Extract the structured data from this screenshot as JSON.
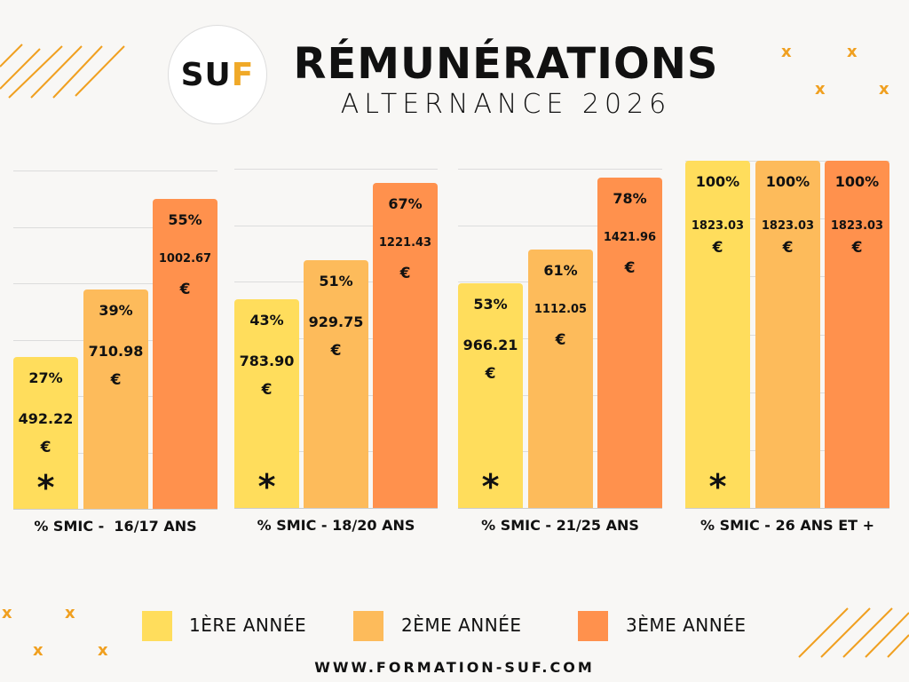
{
  "header": {
    "logo_text": "SUF",
    "title": "RÉMUNÉRATIONS",
    "subtitle": "ALTERNANCE 2026"
  },
  "colors": {
    "year1": "#FFDD5C",
    "year2": "#FDBB5B",
    "year3": "#FF914D",
    "accent": "#F0A020"
  },
  "chart_data": {
    "type": "bar",
    "categories": [
      "% SMIC -  16/17 ANS",
      "% SMIC - 18/20 ANS",
      "% SMIC - 21/25 ANS",
      "% SMIC - 26 ANS ET +"
    ],
    "series": [
      {
        "name": "1ÈRE ANNÉE",
        "values": [
          27,
          43,
          53,
          100
        ],
        "amounts": [
          "492.22",
          "783.90",
          "966.21",
          "1823.03"
        ]
      },
      {
        "name": "2ÈME ANNÉE",
        "values": [
          39,
          51,
          61,
          100
        ],
        "amounts": [
          "710.98",
          "929.75",
          "1112.05",
          "1823.03"
        ]
      },
      {
        "name": "3ÈME ANNÉE",
        "values": [
          55,
          67,
          78,
          100
        ],
        "amounts": [
          "1002.67",
          "1221.43",
          "1421.96",
          "1823.03"
        ]
      }
    ],
    "currency": "€",
    "footnote_marker": "*",
    "grid": true,
    "legend": "bottom"
  },
  "footer": {
    "url": "WWW.FORMATION-SUF.COM"
  }
}
